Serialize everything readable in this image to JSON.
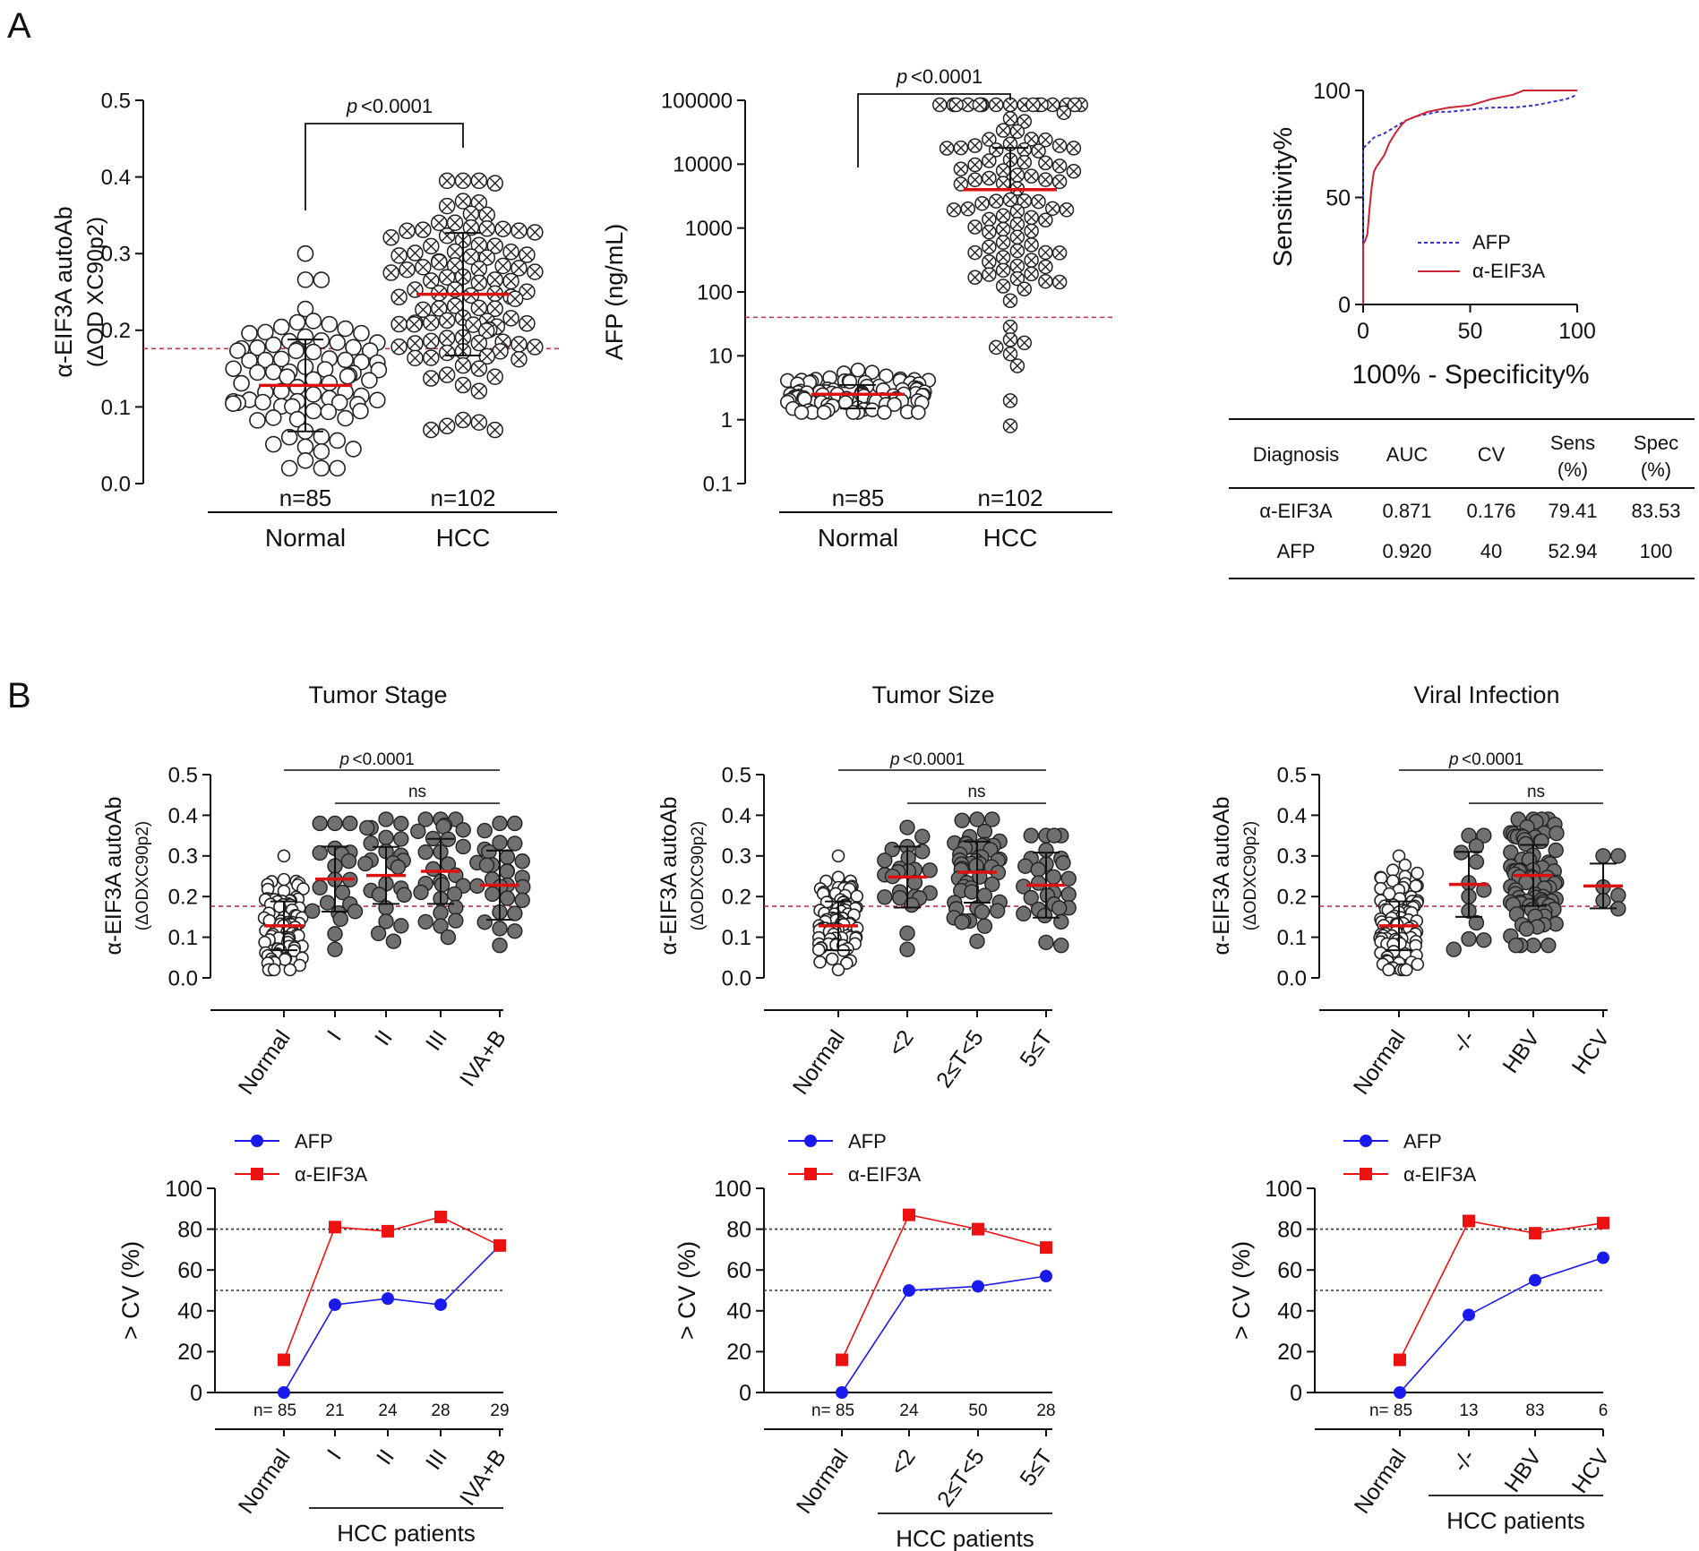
{
  "panels": {
    "A": "A",
    "B": "B"
  },
  "chart_data": [
    {
      "id": "A1",
      "type": "scatter",
      "ylabel": "α-EIF3A autoAb",
      "ylabel2": "(ΔOD XC90p2)",
      "ylim": [
        0,
        0.5
      ],
      "yticks": [
        "0.0",
        "0.1",
        "0.2",
        "0.3",
        "0.4",
        "0.5"
      ],
      "categories": [
        "Normal",
        "HCC"
      ],
      "n_labels": [
        "n=85",
        "n=102"
      ],
      "cutoff": 0.176,
      "p_label": "p",
      "p_value": "<0.0001",
      "groups": [
        {
          "name": "Normal",
          "n": 85,
          "mean": 0.128,
          "sd": 0.06,
          "min": 0.02,
          "max": 0.3,
          "marker": "open"
        },
        {
          "name": "HCC",
          "n": 102,
          "mean": 0.247,
          "sd": 0.08,
          "min": 0.07,
          "max": 0.395,
          "marker": "cross"
        }
      ]
    },
    {
      "id": "A2",
      "type": "scatter",
      "yscale": "log",
      "ylabel": "AFP (ng/mL)",
      "ylim": [
        0.1,
        100000
      ],
      "yticks": [
        "0.1",
        "1",
        "10",
        "100",
        "1000",
        "10000",
        "100000"
      ],
      "categories": [
        "Normal",
        "HCC"
      ],
      "n_labels": [
        "n=85",
        "n=102"
      ],
      "cutoff": 40,
      "p_label": "p",
      "p_value": "<0.0001",
      "groups": [
        {
          "name": "Normal",
          "n": 85,
          "mean": 2.5,
          "sd_low": 1.5,
          "sd_high": 3.5,
          "min": 1.3,
          "max": 6,
          "marker": "open"
        },
        {
          "name": "HCC",
          "n": 102,
          "mean": 4000,
          "sd_high": 18000,
          "min": 0.8,
          "max": 85000,
          "marker": "cross"
        }
      ]
    },
    {
      "id": "A3",
      "type": "line",
      "subtype": "ROC",
      "xlabel": "100% - Specificity%",
      "ylabel": "Sensitivity%",
      "xlim": [
        0,
        100
      ],
      "ylim": [
        0,
        100
      ],
      "xticks": [
        "0",
        "50",
        "100"
      ],
      "yticks": [
        "0",
        "50",
        "100"
      ],
      "series": [
        {
          "name": "AFP",
          "color": "#3333cc",
          "dash": true,
          "x": [
            0,
            0,
            2,
            5,
            10,
            15,
            20,
            25,
            30,
            35,
            40,
            50,
            60,
            70,
            80,
            90,
            95,
            100
          ],
          "y": [
            0,
            73,
            75,
            78,
            80,
            83,
            86,
            88,
            89,
            90,
            90,
            91,
            92,
            92,
            93,
            95,
            96,
            98
          ]
        },
        {
          "name": "α-EIF3A",
          "color": "#cc2233",
          "dash": false,
          "x": [
            0,
            0,
            1,
            2,
            3,
            4,
            5,
            6,
            8,
            10,
            12,
            15,
            18,
            20,
            25,
            30,
            35,
            40,
            50,
            60,
            70,
            75,
            80,
            90,
            100
          ],
          "y": [
            0,
            28,
            30,
            33,
            45,
            55,
            62,
            64,
            67,
            70,
            75,
            80,
            84,
            86,
            88,
            90,
            91,
            92,
            93,
            96,
            98,
            100,
            100,
            100,
            100
          ]
        }
      ]
    },
    {
      "id": "T",
      "type": "table",
      "headers": [
        [
          "Diagnosis"
        ],
        [
          "AUC"
        ],
        [
          "CV"
        ],
        [
          "Sens",
          "(%)"
        ],
        [
          "Spec",
          "(%)"
        ]
      ],
      "rows": [
        [
          "α-EIF3A",
          "0.871",
          "0.176",
          "79.41",
          "83.53"
        ],
        [
          "AFP",
          "0.920",
          "40",
          "52.94",
          "100"
        ]
      ]
    },
    {
      "id": "B1",
      "type": "scatter",
      "title": "Tumor Stage",
      "ylabel": "α-EIF3A autoAb",
      "ylabel2": "(ΔODXC90p2)",
      "ylim": [
        0,
        0.5
      ],
      "yticks": [
        "0.0",
        "0.1",
        "0.2",
        "0.3",
        "0.4",
        "0.5"
      ],
      "categories": [
        "Normal",
        "I",
        "II",
        "III",
        "IVA+B"
      ],
      "cutoff": 0.176,
      "p_label": "p",
      "p_value": "<0.0001",
      "ns": "ns",
      "groups": [
        {
          "name": "Normal",
          "n": 85,
          "mean": 0.128,
          "sd": 0.06,
          "min": 0.02,
          "max": 0.3,
          "marker": "open"
        },
        {
          "name": "I",
          "n": 21,
          "mean": 0.243,
          "sd": 0.08,
          "min": 0.07,
          "max": 0.38,
          "marker": "filled"
        },
        {
          "name": "II",
          "n": 24,
          "mean": 0.252,
          "sd": 0.07,
          "min": 0.09,
          "max": 0.39,
          "marker": "filled"
        },
        {
          "name": "III",
          "n": 28,
          "mean": 0.262,
          "sd": 0.08,
          "min": 0.1,
          "max": 0.39,
          "marker": "filled"
        },
        {
          "name": "IVA+B",
          "n": 29,
          "mean": 0.228,
          "sd": 0.085,
          "min": 0.08,
          "max": 0.38,
          "marker": "filled"
        }
      ]
    },
    {
      "id": "B2",
      "type": "scatter",
      "title": "Tumor Size",
      "ylabel": "α-EIF3A autoAb",
      "ylabel2": "(ΔODXC90p2)",
      "ylim": [
        0,
        0.5
      ],
      "yticks": [
        "0.0",
        "0.1",
        "0.2",
        "0.3",
        "0.4",
        "0.5"
      ],
      "categories": [
        "Normal",
        "<2",
        "2≤T<5",
        "5≤T"
      ],
      "cutoff": 0.176,
      "p_label": "p",
      "p_value": "<0.0001",
      "ns": "ns",
      "groups": [
        {
          "name": "Normal",
          "n": 85,
          "mean": 0.128,
          "sd": 0.06,
          "min": 0.02,
          "max": 0.3,
          "marker": "open"
        },
        {
          "name": "<2",
          "n": 24,
          "mean": 0.248,
          "sd": 0.075,
          "min": 0.07,
          "max": 0.37,
          "marker": "filled"
        },
        {
          "name": "2≤T<5",
          "n": 50,
          "mean": 0.26,
          "sd": 0.075,
          "min": 0.09,
          "max": 0.39,
          "marker": "filled"
        },
        {
          "name": "5≤T",
          "n": 28,
          "mean": 0.228,
          "sd": 0.08,
          "min": 0.08,
          "max": 0.35,
          "marker": "filled"
        }
      ]
    },
    {
      "id": "B3",
      "type": "scatter",
      "title": "Viral Infection",
      "ylabel": "α-EIF3A autoAb",
      "ylabel2": "(ΔODXC90p2)",
      "ylim": [
        0,
        0.5
      ],
      "yticks": [
        "0.0",
        "0.1",
        "0.2",
        "0.3",
        "0.4",
        "0.5"
      ],
      "categories": [
        "Normal",
        "-/-",
        "HBV",
        "HCV"
      ],
      "cutoff": 0.176,
      "p_label": "p",
      "p_value": "<0.0001",
      "ns": "ns",
      "groups": [
        {
          "name": "Normal",
          "n": 85,
          "mean": 0.128,
          "sd": 0.06,
          "min": 0.02,
          "max": 0.3,
          "marker": "open"
        },
        {
          "name": "-/-",
          "n": 13,
          "mean": 0.23,
          "sd": 0.08,
          "min": 0.07,
          "max": 0.35,
          "marker": "filled"
        },
        {
          "name": "HBV",
          "n": 83,
          "mean": 0.252,
          "sd": 0.075,
          "min": 0.08,
          "max": 0.39,
          "marker": "filled"
        },
        {
          "name": "HCV",
          "n": 6,
          "mean": 0.226,
          "sd": 0.055,
          "min": 0.17,
          "max": 0.3,
          "marker": "filled"
        }
      ]
    },
    {
      "id": "C1",
      "type": "line",
      "ylabel": "> CV (%)",
      "ylim": [
        0,
        100
      ],
      "yticks": [
        "0",
        "20",
        "40",
        "60",
        "80",
        "100"
      ],
      "categories": [
        "Normal",
        "I",
        "II",
        "III",
        "IVA+B"
      ],
      "n_labels": [
        "n= 85",
        "21",
        "24",
        "28",
        "29"
      ],
      "xgroup_label": "HCC patients",
      "ref_lines": [
        50,
        80
      ],
      "series": [
        {
          "name": "AFP",
          "color": "#1a1aee",
          "marker": "circle",
          "values": [
            0,
            43,
            46,
            43,
            72
          ]
        },
        {
          "name": "α-EIF3A",
          "color": "#ee1111",
          "marker": "square",
          "values": [
            16,
            81,
            79,
            86,
            72
          ]
        }
      ]
    },
    {
      "id": "C2",
      "type": "line",
      "ylabel": "> CV (%)",
      "ylim": [
        0,
        100
      ],
      "yticks": [
        "0",
        "20",
        "40",
        "60",
        "80",
        "100"
      ],
      "categories": [
        "Normal",
        "<2",
        "2≤T<5",
        "5≤T"
      ],
      "n_labels": [
        "n= 85",
        "24",
        "50",
        "28"
      ],
      "xgroup_label": "HCC patients",
      "ref_lines": [
        50,
        80
      ],
      "series": [
        {
          "name": "AFP",
          "color": "#1a1aee",
          "marker": "circle",
          "values": [
            0,
            50,
            52,
            57
          ]
        },
        {
          "name": "α-EIF3A",
          "color": "#ee1111",
          "marker": "square",
          "values": [
            16,
            87,
            80,
            71
          ]
        }
      ]
    },
    {
      "id": "C3",
      "type": "line",
      "ylabel": "> CV (%)",
      "ylim": [
        0,
        100
      ],
      "yticks": [
        "0",
        "20",
        "40",
        "60",
        "80",
        "100"
      ],
      "categories": [
        "Normal",
        "-/-",
        "HBV",
        "HCV"
      ],
      "n_labels": [
        "n= 85",
        "13",
        "83",
        "6"
      ],
      "xgroup_label": "HCC patients",
      "ref_lines": [
        50,
        80
      ],
      "series": [
        {
          "name": "AFP",
          "color": "#1a1aee",
          "marker": "circle",
          "values": [
            0,
            38,
            55,
            66
          ]
        },
        {
          "name": "α-EIF3A",
          "color": "#ee1111",
          "marker": "square",
          "values": [
            16,
            84,
            78,
            83
          ]
        }
      ]
    }
  ]
}
